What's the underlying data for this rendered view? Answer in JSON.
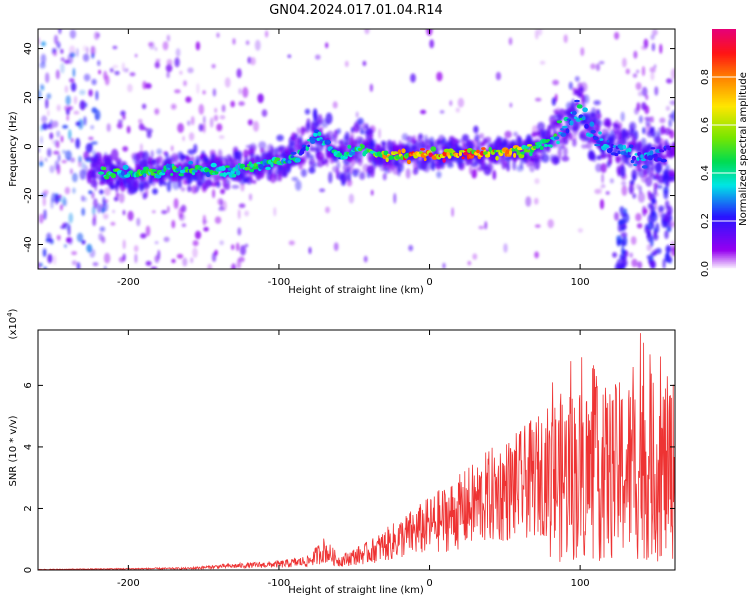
{
  "page_title": "GN04.2024.017.01.04.R14",
  "colors": {
    "snr_line": "#ee3333",
    "axis": "#000000"
  },
  "chart_data": [
    {
      "id": "spectrogram",
      "type": "heatmap",
      "title": "GN04.2024.017.01.04.R14",
      "xlabel": "Height of straight line (km)",
      "ylabel": "Frequency (Hz)",
      "xlim": [
        -260,
        163
      ],
      "ylim": [
        -50,
        48
      ],
      "xticks": [
        -200,
        -100,
        0,
        100
      ],
      "yticks": [
        -40,
        -20,
        0,
        20,
        40
      ],
      "colorbar": {
        "label": "Normalized spectral amplitude",
        "range": [
          0,
          1
        ],
        "ticks": [
          "0.0",
          "0.2",
          "0.4",
          "0.6",
          "0.8"
        ],
        "colormap": "rainbow (white → violet → blue → cyan → green → yellow → orange → red → magenta)"
      },
      "ridge": [
        {
          "x": -215,
          "y": -11,
          "amp": 0.45
        },
        {
          "x": -190,
          "y": -11,
          "amp": 0.5
        },
        {
          "x": -165,
          "y": -9,
          "amp": 0.45
        },
        {
          "x": -140,
          "y": -10,
          "amp": 0.45
        },
        {
          "x": -120,
          "y": -9,
          "amp": 0.45
        },
        {
          "x": -100,
          "y": -6,
          "amp": 0.45
        },
        {
          "x": -85,
          "y": -3,
          "amp": 0.35
        },
        {
          "x": -75,
          "y": 5,
          "amp": 0.4
        },
        {
          "x": -60,
          "y": -4,
          "amp": 0.4
        },
        {
          "x": -45,
          "y": 0,
          "amp": 0.45
        },
        {
          "x": -30,
          "y": -4,
          "amp": 0.75
        },
        {
          "x": -10,
          "y": -3,
          "amp": 0.85
        },
        {
          "x": 10,
          "y": -3,
          "amp": 0.9
        },
        {
          "x": 30,
          "y": -3,
          "amp": 0.85
        },
        {
          "x": 50,
          "y": -2,
          "amp": 0.75
        },
        {
          "x": 65,
          "y": -2,
          "amp": 0.6
        },
        {
          "x": 80,
          "y": 3,
          "amp": 0.5
        },
        {
          "x": 90,
          "y": 8,
          "amp": 0.4
        },
        {
          "x": 100,
          "y": 14,
          "amp": 0.4
        },
        {
          "x": 110,
          "y": 5,
          "amp": 0.35
        },
        {
          "x": 120,
          "y": 0,
          "amp": 0.3
        },
        {
          "x": 140,
          "y": -5,
          "amp": 0.3
        },
        {
          "x": 163,
          "y": 0,
          "amp": 0.25
        }
      ]
    },
    {
      "id": "snr",
      "type": "line",
      "xlabel": "Height of straight line (km)",
      "ylabel": "SNR (10 * v/v)",
      "y_multiplier_label": "(x10",
      "y_multiplier_exp": "4",
      "y_multiplier_close": ")",
      "xlim": [
        -260,
        163
      ],
      "ylim": [
        0,
        78000
      ],
      "xticks": [
        -200,
        -100,
        0,
        100
      ],
      "yticks": [
        0,
        20000,
        40000,
        60000
      ],
      "ytick_labels": [
        "0",
        "2",
        "4",
        "6"
      ],
      "envelope": [
        {
          "x": -260,
          "y": 200
        },
        {
          "x": -160,
          "y": 700
        },
        {
          "x": -140,
          "y": 1500
        },
        {
          "x": -100,
          "y": 2500
        },
        {
          "x": -80,
          "y": 4000
        },
        {
          "x": -70,
          "y": 9000
        },
        {
          "x": -60,
          "y": 4000
        },
        {
          "x": -40,
          "y": 8000
        },
        {
          "x": -20,
          "y": 14000
        },
        {
          "x": 0,
          "y": 20000
        },
        {
          "x": 20,
          "y": 26000
        },
        {
          "x": 40,
          "y": 33000
        },
        {
          "x": 60,
          "y": 38000
        },
        {
          "x": 80,
          "y": 45000
        },
        {
          "x": 100,
          "y": 48000
        },
        {
          "x": 120,
          "y": 48000
        },
        {
          "x": 140,
          "y": 52000
        },
        {
          "x": 163,
          "y": 50000
        }
      ],
      "peak": {
        "x": 140,
        "y": 77000
      }
    }
  ]
}
